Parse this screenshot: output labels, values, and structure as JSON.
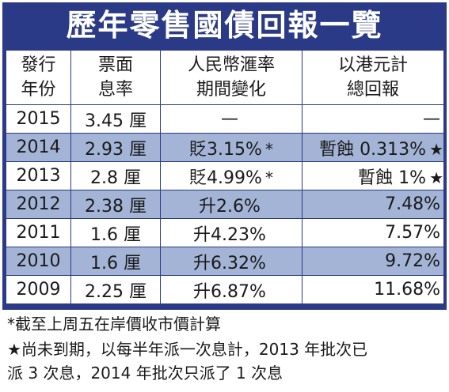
{
  "title": "歷年零售國債回報一覽",
  "columns": [
    [
      "發行",
      "年份"
    ],
    [
      "票面",
      "息率"
    ],
    [
      "人民幣滙率",
      "期間變化"
    ],
    [
      "以港元計",
      "總回報"
    ]
  ],
  "rows": [
    {
      "year": "2015",
      "rate": "3.45 厘",
      "change": "—",
      "change_mark": "",
      "return": "—",
      "return_mark": ""
    },
    {
      "year": "2014",
      "rate": "2.93 厘",
      "change": "貶3.15%",
      "change_mark": "*",
      "return": "暫蝕 0.313%",
      "return_mark": "★"
    },
    {
      "year": "2013",
      "rate": "2.8 厘",
      "change": "貶4.99%",
      "change_mark": "*",
      "return": "暫蝕 1%",
      "return_mark": "★"
    },
    {
      "year": "2012",
      "rate": "2.38 厘",
      "change": "升2.6%",
      "change_mark": "",
      "return": "7.48%",
      "return_mark": ""
    },
    {
      "year": "2011",
      "rate": "1.6 厘",
      "change": "升4.23%",
      "change_mark": "",
      "return": "7.57%",
      "return_mark": ""
    },
    {
      "year": "2010",
      "rate": "1.6 厘",
      "change": "升6.32%",
      "change_mark": "",
      "return": "9.72%",
      "return_mark": ""
    },
    {
      "year": "2009",
      "rate": "2.25 厘",
      "change": "升6.87%",
      "change_mark": "",
      "return": "11.68%",
      "return_mark": ""
    }
  ],
  "notes": [
    "*截至上周五在岸價收市價計算",
    "★尚未到期，以每半年派一次息計，2013 年批次已",
    "派 3 次息，2014 年批次只派了 1 次息"
  ],
  "chart_data": {
    "type": "table",
    "title": "歷年零售國債回報一覽",
    "header": [
      "發行年份",
      "票面息率",
      "人民幣滙率期間變化",
      "以港元計總回報"
    ],
    "cells": [
      [
        "2015",
        "3.45 厘",
        "—",
        "—"
      ],
      [
        "2014",
        "2.93 厘",
        "貶3.15% *",
        "暫蝕 0.313% ★"
      ],
      [
        "2013",
        "2.8 厘",
        "貶4.99% *",
        "暫蝕 1% ★"
      ],
      [
        "2012",
        "2.38 厘",
        "升2.6%",
        "7.48%"
      ],
      [
        "2011",
        "1.6 厘",
        "升4.23%",
        "7.57%"
      ],
      [
        "2010",
        "1.6 厘",
        "升6.32%",
        "9.72%"
      ],
      [
        "2009",
        "2.25 厘",
        "升6.87%",
        "11.68%"
      ]
    ]
  },
  "colors": {
    "frame": "#2a3a87",
    "row_tint": "#a3b4d6",
    "row_white": "#ffffff",
    "title_text": "#ffffff"
  }
}
